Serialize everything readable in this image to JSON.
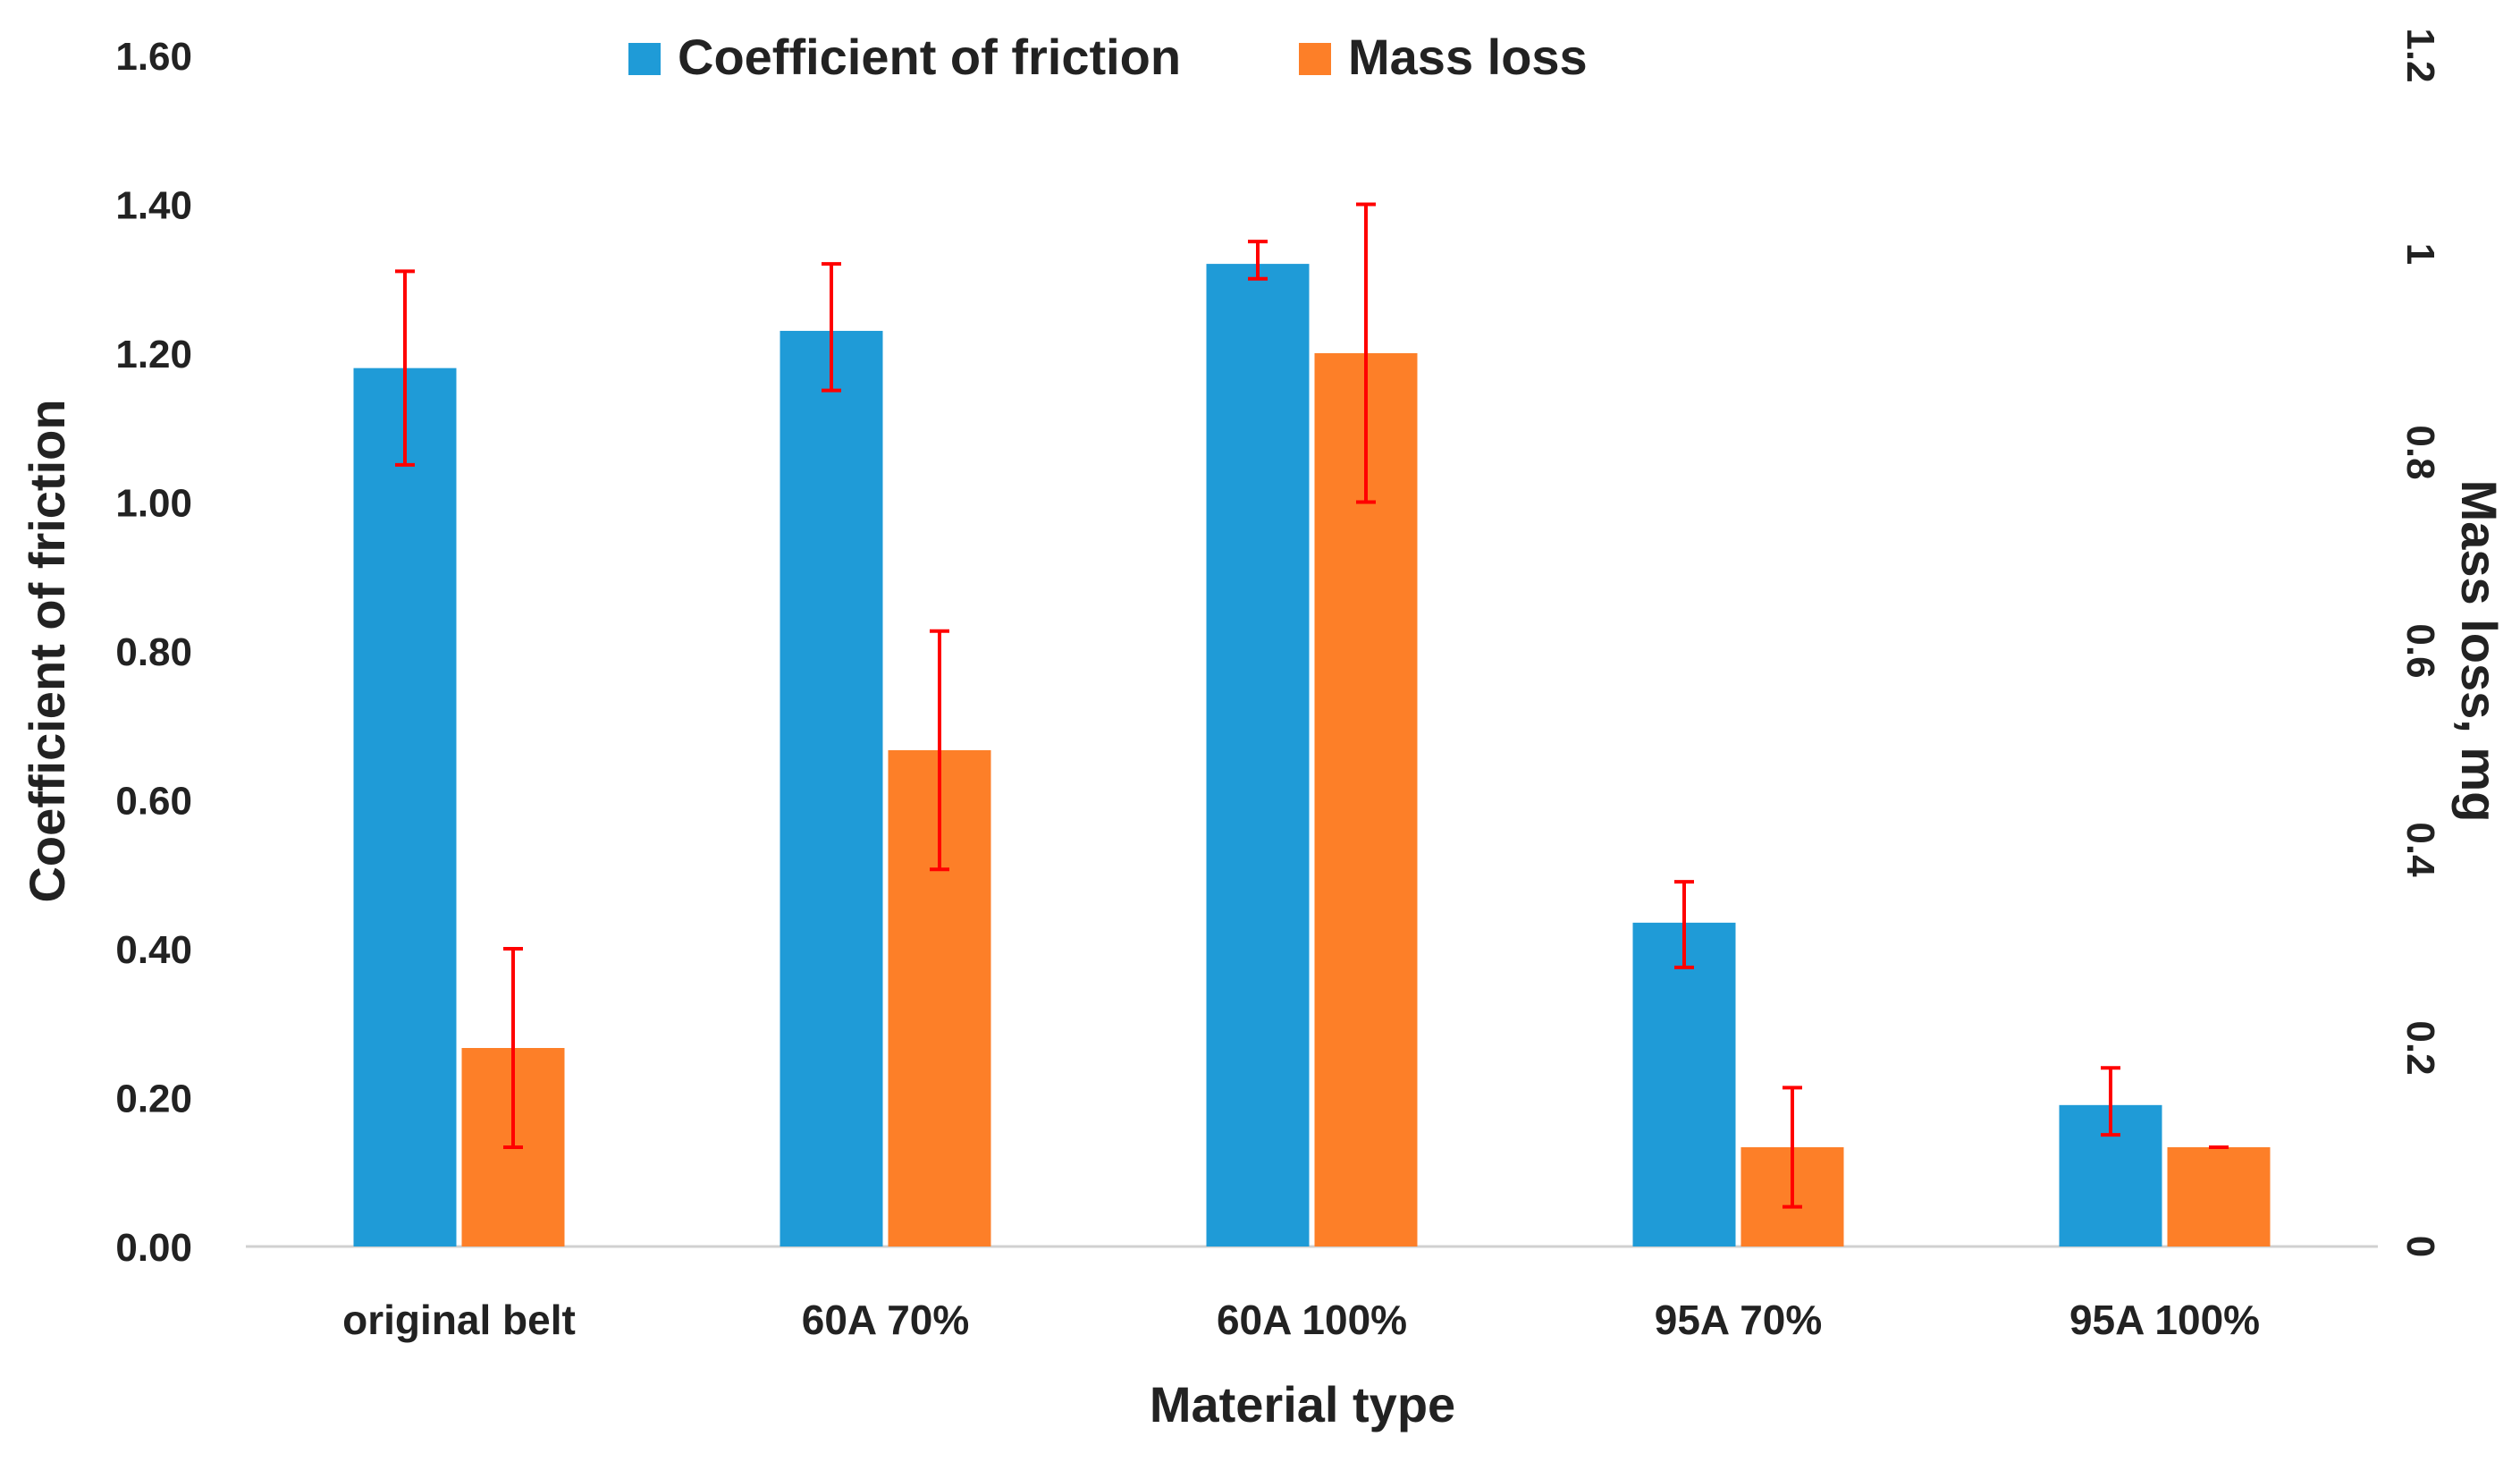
{
  "chart_data": {
    "type": "bar",
    "title": "",
    "xlabel": "Material type",
    "ylabel": "Coefficient of friction",
    "y2label": "Mass loss, mg",
    "categories": [
      "original belt",
      "60A 70%",
      "60A 100%",
      "95A 70%",
      "95A 100%"
    ],
    "ylim": [
      0,
      1.6
    ],
    "y2lim": [
      0,
      1.2
    ],
    "yticks": [
      "0.00",
      "0.20",
      "0.40",
      "0.60",
      "0.80",
      "1.00",
      "1.20",
      "1.40",
      "1.60"
    ],
    "y2ticks": [
      "0",
      "0.2",
      "0.4",
      "0.6",
      "0.8",
      "1",
      "1.2"
    ],
    "legend_position": "top-center",
    "grid": false,
    "series": [
      {
        "name": "Coefficient of friction",
        "axis": "left",
        "color": "#1f9bd7",
        "values": [
          1.18,
          1.23,
          1.32,
          0.435,
          0.19
        ],
        "error_low": [
          1.05,
          1.15,
          1.3,
          0.375,
          0.15
        ],
        "error_high": [
          1.31,
          1.32,
          1.35,
          0.49,
          0.24
        ]
      },
      {
        "name": "Mass loss",
        "axis": "right",
        "color": "#fd7f28",
        "values": [
          0.2,
          0.5,
          0.9,
          0.1,
          0.1
        ],
        "error_low": [
          0.1,
          0.38,
          0.75,
          0.04,
          0.1
        ],
        "error_high": [
          0.3,
          0.62,
          1.05,
          0.16,
          0.1
        ]
      }
    ],
    "error_bar_color": "#ff0000"
  }
}
